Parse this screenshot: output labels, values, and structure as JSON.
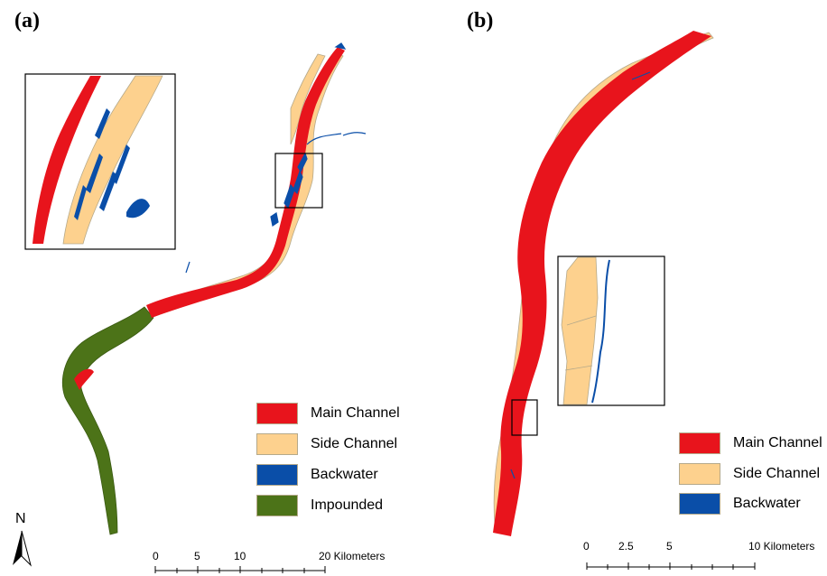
{
  "panels": {
    "a": {
      "label": "(a)"
    },
    "b": {
      "label": "(b)"
    }
  },
  "colors": {
    "main_channel": "#e8141c",
    "side_channel": "#fdd18e",
    "backwater": "#0a4ea8",
    "impounded": "#4c7318",
    "outline": "#b5a98a"
  },
  "legend_a": {
    "items": [
      {
        "label": "Main Channel",
        "color": "#e8141c"
      },
      {
        "label": "Side Channel",
        "color": "#fdd18e"
      },
      {
        "label": "Backwater",
        "color": "#0a4ea8"
      },
      {
        "label": "Impounded",
        "color": "#4c7318"
      }
    ]
  },
  "legend_b": {
    "items": [
      {
        "label": "Main Channel",
        "color": "#e8141c"
      },
      {
        "label": "Side Channel",
        "color": "#fdd18e"
      },
      {
        "label": "Backwater",
        "color": "#0a4ea8"
      }
    ]
  },
  "scale_a": {
    "ticks": [
      "0",
      "5",
      "10",
      "20 Kilometers"
    ]
  },
  "scale_b": {
    "ticks": [
      "0",
      "2.5",
      "5",
      "10 Kilometers"
    ]
  },
  "north_arrow": {
    "label": "N",
    "icon": "north-arrow-icon"
  }
}
